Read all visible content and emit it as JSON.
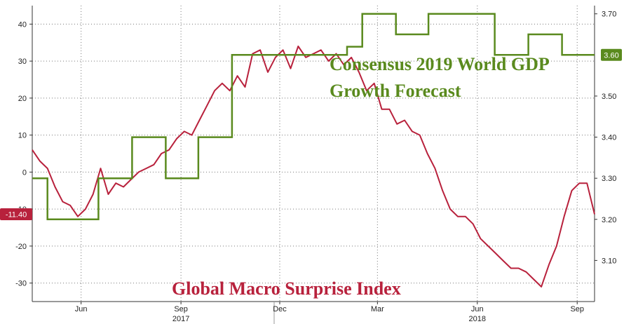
{
  "chart_data": {
    "type": "line",
    "title": "",
    "x_ticks": [
      {
        "label": "Jun",
        "date": "2017-06-15"
      },
      {
        "label": "Sep",
        "date": "2017-09-15"
      },
      {
        "label": "Dec",
        "date": "2017-12-15"
      },
      {
        "label": "Mar",
        "date": "2018-03-15"
      },
      {
        "label": "Jun",
        "date": "2018-06-15"
      },
      {
        "label": "Sep",
        "date": "2018-09-15"
      }
    ],
    "x_year_labels": [
      {
        "label": "2017",
        "date": "2017-09-15"
      },
      {
        "label": "2018",
        "date": "2018-06-15"
      }
    ],
    "x_range": [
      "2017-05-01",
      "2018-10-01"
    ],
    "left_axis": {
      "ylim": [
        -35,
        45
      ],
      "ticks": [
        "40",
        "30",
        "20",
        "10",
        "0",
        "-10",
        "-20",
        "-30"
      ]
    },
    "right_axis": {
      "ylim": [
        3.0,
        3.72
      ],
      "ticks": [
        "3.70",
        "3.60",
        "3.50",
        "3.40",
        "3.30",
        "3.20",
        "3.10"
      ]
    },
    "grid": true,
    "series": [
      {
        "name": "Global Macro Surprise Index",
        "axis": "left",
        "color": "#b8213c",
        "last_value": "-11.40",
        "points": [
          [
            "2017-05-01",
            6
          ],
          [
            "2017-05-08",
            3
          ],
          [
            "2017-05-15",
            1
          ],
          [
            "2017-05-22",
            -4
          ],
          [
            "2017-05-29",
            -8
          ],
          [
            "2017-06-05",
            -9
          ],
          [
            "2017-06-12",
            -12
          ],
          [
            "2017-06-19",
            -10
          ],
          [
            "2017-06-26",
            -6
          ],
          [
            "2017-07-03",
            1
          ],
          [
            "2017-07-10",
            -6
          ],
          [
            "2017-07-17",
            -3
          ],
          [
            "2017-07-24",
            -4
          ],
          [
            "2017-07-31",
            -2
          ],
          [
            "2017-08-07",
            0
          ],
          [
            "2017-08-14",
            1
          ],
          [
            "2017-08-21",
            2
          ],
          [
            "2017-08-28",
            5
          ],
          [
            "2017-09-04",
            6
          ],
          [
            "2017-09-11",
            9
          ],
          [
            "2017-09-18",
            11
          ],
          [
            "2017-09-25",
            10
          ],
          [
            "2017-10-02",
            14
          ],
          [
            "2017-10-09",
            18
          ],
          [
            "2017-10-16",
            22
          ],
          [
            "2017-10-23",
            24
          ],
          [
            "2017-10-30",
            22
          ],
          [
            "2017-11-06",
            26
          ],
          [
            "2017-11-13",
            23
          ],
          [
            "2017-11-20",
            32
          ],
          [
            "2017-11-27",
            33
          ],
          [
            "2017-12-04",
            27
          ],
          [
            "2017-12-11",
            31
          ],
          [
            "2017-12-18",
            33
          ],
          [
            "2017-12-25",
            28
          ],
          [
            "2018-01-01",
            34
          ],
          [
            "2018-01-08",
            31
          ],
          [
            "2018-01-15",
            32
          ],
          [
            "2018-01-22",
            33
          ],
          [
            "2018-01-29",
            30
          ],
          [
            "2018-02-05",
            32
          ],
          [
            "2018-02-12",
            29
          ],
          [
            "2018-02-19",
            31
          ],
          [
            "2018-02-26",
            27
          ],
          [
            "2018-03-05",
            22
          ],
          [
            "2018-03-12",
            24
          ],
          [
            "2018-03-19",
            17
          ],
          [
            "2018-03-26",
            17
          ],
          [
            "2018-04-02",
            13
          ],
          [
            "2018-04-09",
            14
          ],
          [
            "2018-04-16",
            11
          ],
          [
            "2018-04-23",
            10
          ],
          [
            "2018-04-30",
            5
          ],
          [
            "2018-05-07",
            1
          ],
          [
            "2018-05-14",
            -5
          ],
          [
            "2018-05-21",
            -10
          ],
          [
            "2018-05-28",
            -12
          ],
          [
            "2018-06-04",
            -12
          ],
          [
            "2018-06-11",
            -14
          ],
          [
            "2018-06-18",
            -18
          ],
          [
            "2018-06-25",
            -20
          ],
          [
            "2018-07-02",
            -22
          ],
          [
            "2018-07-09",
            -24
          ],
          [
            "2018-07-16",
            -26
          ],
          [
            "2018-07-23",
            -26
          ],
          [
            "2018-07-30",
            -27
          ],
          [
            "2018-08-06",
            -29
          ],
          [
            "2018-08-13",
            -31
          ],
          [
            "2018-08-20",
            -25
          ],
          [
            "2018-08-27",
            -20
          ],
          [
            "2018-09-03",
            -12
          ],
          [
            "2018-09-10",
            -5
          ],
          [
            "2018-09-17",
            -3
          ],
          [
            "2018-09-24",
            -3
          ],
          [
            "2018-10-01",
            -11.4
          ]
        ]
      },
      {
        "name": "Consensus 2019 World GDP Growth Forecast",
        "axis": "right",
        "color": "#5a8a1e",
        "last_value": "3.60",
        "points": [
          [
            "2017-05-01",
            3.3
          ],
          [
            "2017-05-15",
            3.2
          ],
          [
            "2017-07-01",
            3.3
          ],
          [
            "2017-08-01",
            3.4
          ],
          [
            "2017-09-01",
            3.3
          ],
          [
            "2017-10-01",
            3.4
          ],
          [
            "2017-11-01",
            3.6
          ],
          [
            "2018-01-01",
            3.6
          ],
          [
            "2018-02-15",
            3.62
          ],
          [
            "2018-03-01",
            3.7
          ],
          [
            "2018-04-01",
            3.65
          ],
          [
            "2018-05-01",
            3.7
          ],
          [
            "2018-07-01",
            3.6
          ],
          [
            "2018-08-01",
            3.65
          ],
          [
            "2018-09-01",
            3.6
          ],
          [
            "2018-10-01",
            3.6
          ]
        ]
      }
    ],
    "annotations": [
      {
        "text": "Consensus 2019 World GDP",
        "color": "#5a8a1e"
      },
      {
        "text": "Growth Forecast",
        "color": "#5a8a1e"
      },
      {
        "text": "Global Macro Surprise Index",
        "color": "#b8213c"
      }
    ]
  }
}
